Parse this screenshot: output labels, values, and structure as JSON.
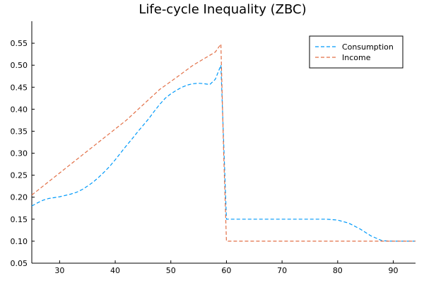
{
  "chart_data": {
    "type": "line",
    "title": "Life-cycle Inequality (ZBC)",
    "xlabel": "",
    "ylabel": "",
    "xlim": [
      25,
      94
    ],
    "ylim": [
      0.05,
      0.6
    ],
    "x_ticks": [
      30,
      40,
      50,
      60,
      70,
      80,
      90
    ],
    "y_ticks": [
      0.05,
      0.1,
      0.15,
      0.2,
      0.25,
      0.3,
      0.35,
      0.4,
      0.45,
      0.5,
      0.55
    ],
    "y_tick_labels": [
      "0.05",
      "0.10",
      "0.15",
      "0.20",
      "0.25",
      "0.30",
      "0.35",
      "0.40",
      "0.45",
      "0.50",
      "0.55"
    ],
    "grid": false,
    "legend_position": "top-right",
    "series": [
      {
        "name": "Consumption",
        "color": "#009AFA",
        "dash": "dashed",
        "x": [
          25,
          26,
          27,
          28,
          29,
          30,
          31,
          32,
          33,
          34,
          35,
          36,
          37,
          38,
          39,
          40,
          41,
          42,
          43,
          44,
          45,
          46,
          47,
          48,
          49,
          50,
          51,
          52,
          53,
          54,
          55,
          56,
          57,
          58,
          59,
          60,
          61,
          65,
          70,
          75,
          78,
          80,
          82,
          84,
          86,
          88,
          90,
          92,
          94
        ],
        "y": [
          0.18,
          0.187,
          0.193,
          0.197,
          0.199,
          0.201,
          0.204,
          0.207,
          0.211,
          0.217,
          0.225,
          0.234,
          0.245,
          0.257,
          0.27,
          0.285,
          0.301,
          0.317,
          0.332,
          0.348,
          0.363,
          0.378,
          0.395,
          0.411,
          0.425,
          0.435,
          0.443,
          0.45,
          0.455,
          0.458,
          0.459,
          0.458,
          0.456,
          0.468,
          0.5,
          0.15,
          0.15,
          0.15,
          0.15,
          0.15,
          0.15,
          0.148,
          0.141,
          0.128,
          0.112,
          0.101,
          0.1,
          0.1,
          0.1
        ]
      },
      {
        "name": "Income",
        "color": "#E26F46",
        "dash": "dashed",
        "x": [
          25,
          27,
          30,
          33,
          36,
          39,
          42,
          45,
          48,
          51,
          54,
          56,
          58,
          59,
          59.5,
          60,
          70,
          80,
          90,
          94
        ],
        "y": [
          0.205,
          0.225,
          0.255,
          0.285,
          0.315,
          0.345,
          0.375,
          0.41,
          0.445,
          0.472,
          0.5,
          0.515,
          0.53,
          0.548,
          0.3,
          0.1,
          0.1,
          0.1,
          0.1,
          0.1
        ]
      }
    ]
  },
  "legend": {
    "items": [
      "Consumption",
      "Income"
    ]
  }
}
